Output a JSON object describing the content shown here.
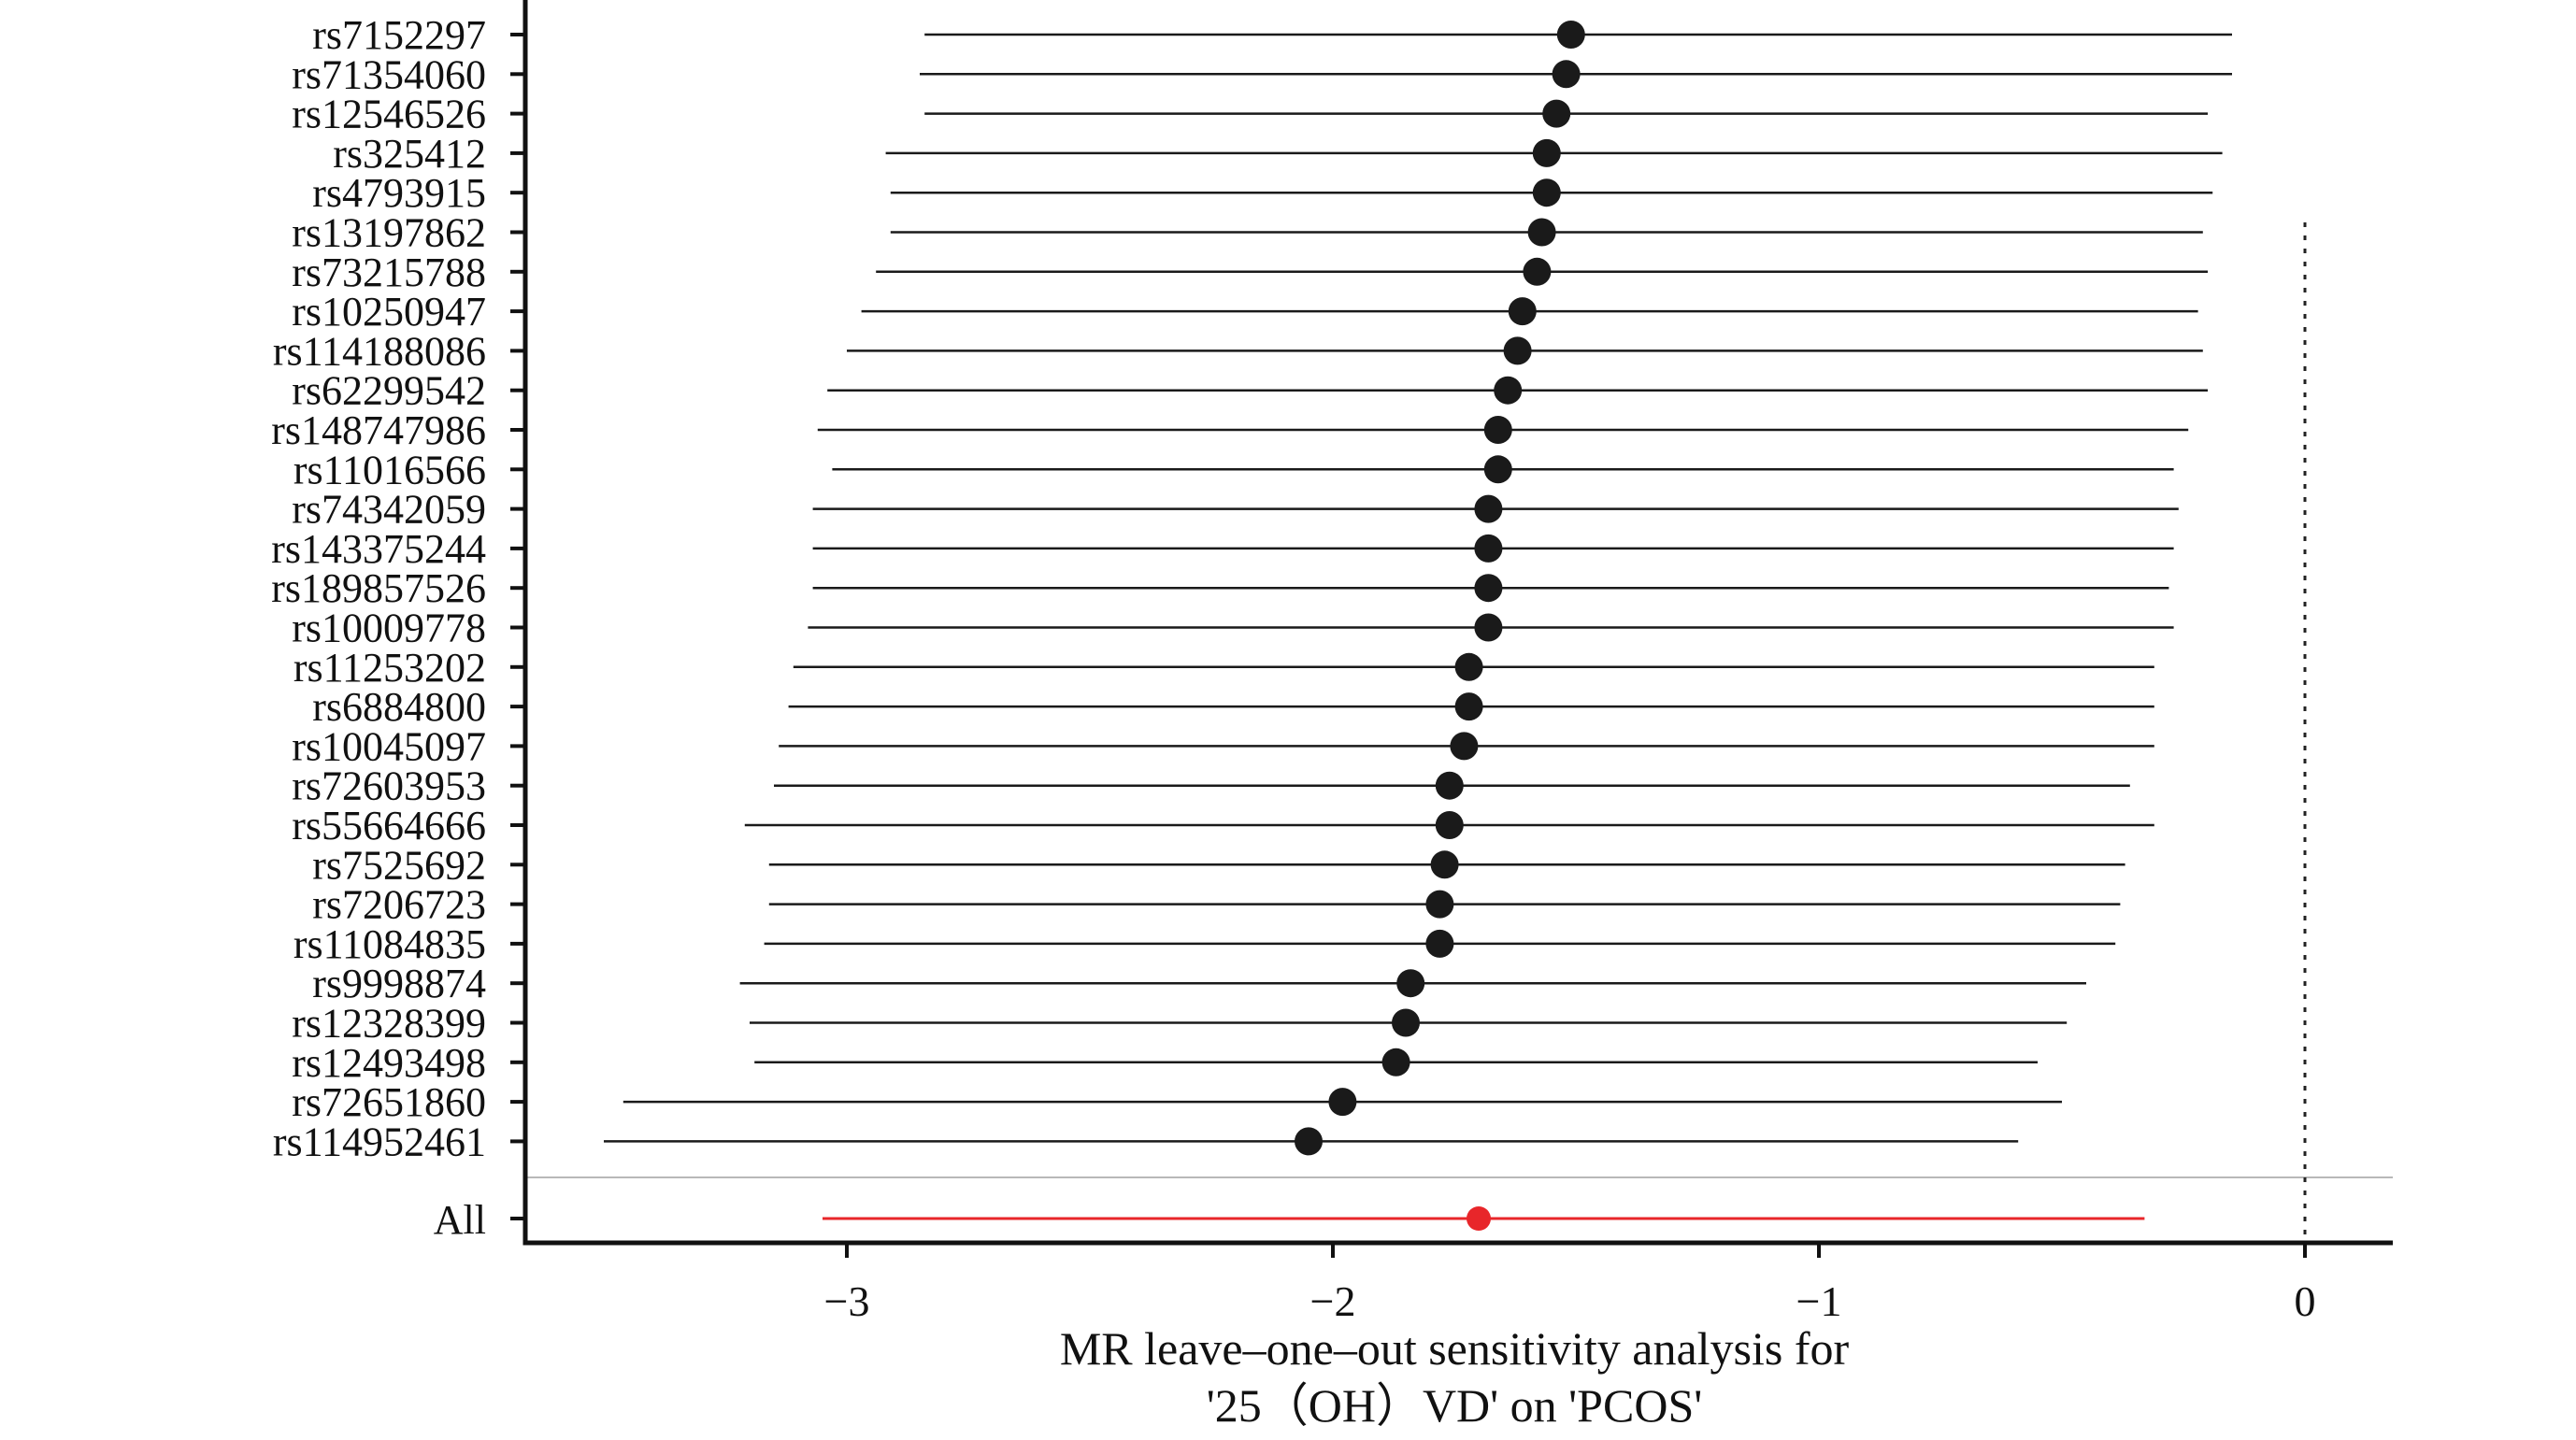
{
  "chart_data": {
    "type": "forest",
    "xlabel_line1": "MR leave–one–out sensitivity analysis for",
    "xlabel_line2": "'25（OH）VD' on 'PCOS'",
    "xlim": [
      -3.67,
      0.18
    ],
    "xticks": [
      -3,
      -2,
      -1,
      0
    ],
    "xtick_labels": [
      "−3",
      "−2",
      "−1",
      "0"
    ],
    "reference_line": 0,
    "colors": {
      "snp": "#1a1a1a",
      "overall": "#e8262a",
      "axis": "#111111"
    },
    "snps": [
      {
        "label": "rs7152297",
        "estimate": -1.51,
        "ci": [
          -2.84,
          -0.15
        ]
      },
      {
        "label": "rs71354060",
        "estimate": -1.52,
        "ci": [
          -2.85,
          -0.15
        ]
      },
      {
        "label": "rs12546526",
        "estimate": -1.54,
        "ci": [
          -2.84,
          -0.2
        ]
      },
      {
        "label": "rs325412",
        "estimate": -1.56,
        "ci": [
          -2.92,
          -0.17
        ]
      },
      {
        "label": "rs4793915",
        "estimate": -1.56,
        "ci": [
          -2.91,
          -0.19
        ]
      },
      {
        "label": "rs13197862",
        "estimate": -1.57,
        "ci": [
          -2.91,
          -0.21
        ]
      },
      {
        "label": "rs73215788",
        "estimate": -1.58,
        "ci": [
          -2.94,
          -0.2
        ]
      },
      {
        "label": "rs10250947",
        "estimate": -1.61,
        "ci": [
          -2.97,
          -0.22
        ]
      },
      {
        "label": "rs114188086",
        "estimate": -1.62,
        "ci": [
          -3.0,
          -0.21
        ]
      },
      {
        "label": "rs62299542",
        "estimate": -1.64,
        "ci": [
          -3.04,
          -0.2
        ]
      },
      {
        "label": "rs148747986",
        "estimate": -1.66,
        "ci": [
          -3.06,
          -0.24
        ]
      },
      {
        "label": "rs11016566",
        "estimate": -1.66,
        "ci": [
          -3.03,
          -0.27
        ]
      },
      {
        "label": "rs74342059",
        "estimate": -1.68,
        "ci": [
          -3.07,
          -0.26
        ]
      },
      {
        "label": "rs143375244",
        "estimate": -1.68,
        "ci": [
          -3.07,
          -0.27
        ]
      },
      {
        "label": "rs189857526",
        "estimate": -1.68,
        "ci": [
          -3.07,
          -0.28
        ]
      },
      {
        "label": "rs10009778",
        "estimate": -1.68,
        "ci": [
          -3.08,
          -0.27
        ]
      },
      {
        "label": "rs11253202",
        "estimate": -1.72,
        "ci": [
          -3.11,
          -0.31
        ]
      },
      {
        "label": "rs6884800",
        "estimate": -1.72,
        "ci": [
          -3.12,
          -0.31
        ]
      },
      {
        "label": "rs10045097",
        "estimate": -1.73,
        "ci": [
          -3.14,
          -0.31
        ]
      },
      {
        "label": "rs72603953",
        "estimate": -1.76,
        "ci": [
          -3.15,
          -0.36
        ]
      },
      {
        "label": "rs55664666",
        "estimate": -1.76,
        "ci": [
          -3.21,
          -0.31
        ]
      },
      {
        "label": "rs7525692",
        "estimate": -1.77,
        "ci": [
          -3.16,
          -0.37
        ]
      },
      {
        "label": "rs7206723",
        "estimate": -1.78,
        "ci": [
          -3.16,
          -0.38
        ]
      },
      {
        "label": "rs11084835",
        "estimate": -1.78,
        "ci": [
          -3.17,
          -0.39
        ]
      },
      {
        "label": "rs9998874",
        "estimate": -1.84,
        "ci": [
          -3.22,
          -0.45
        ]
      },
      {
        "label": "rs12328399",
        "estimate": -1.85,
        "ci": [
          -3.2,
          -0.49
        ]
      },
      {
        "label": "rs12493498",
        "estimate": -1.87,
        "ci": [
          -3.19,
          -0.55
        ]
      },
      {
        "label": "rs72651860",
        "estimate": -1.98,
        "ci": [
          -3.46,
          -0.5
        ]
      },
      {
        "label": "rs114952461",
        "estimate": -2.05,
        "ci": [
          -3.5,
          -0.59
        ]
      }
    ],
    "overall": {
      "label": "All",
      "estimate": -1.7,
      "ci": [
        -3.05,
        -0.33
      ]
    }
  }
}
